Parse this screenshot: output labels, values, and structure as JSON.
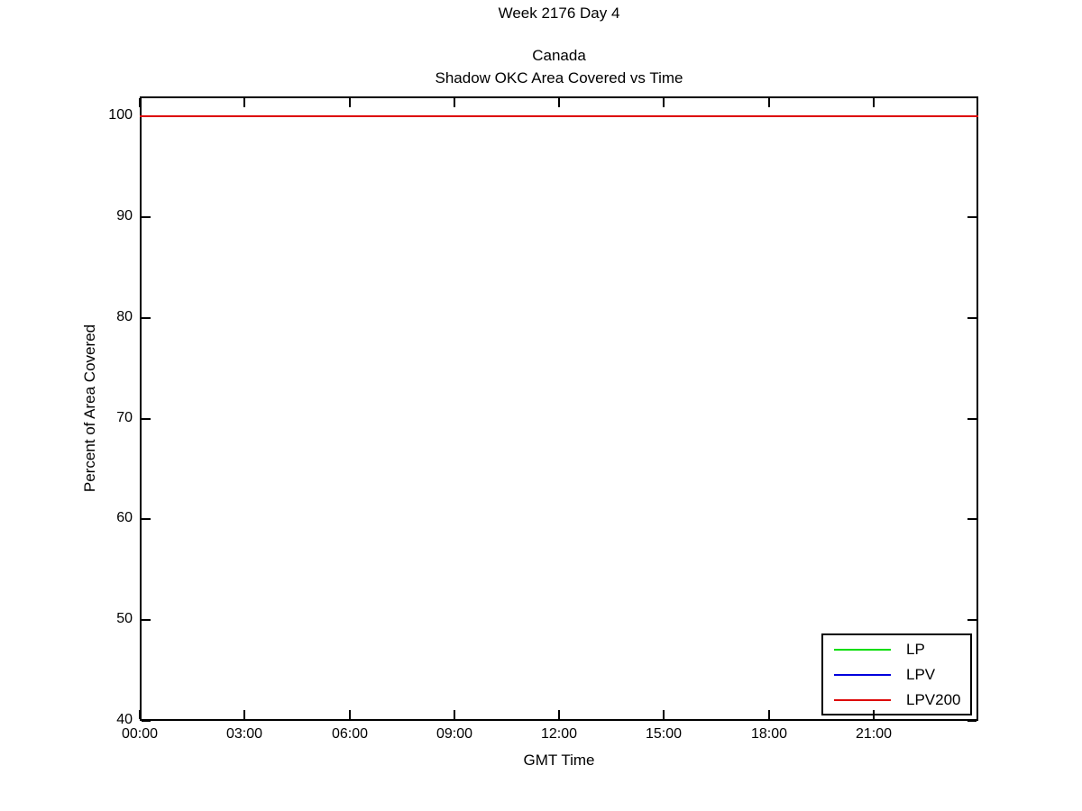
{
  "figure": {
    "suptitle": "Week 2176 Day 4",
    "title_line1": "Canada",
    "title_line2": "Shadow OKC Area Covered vs Time",
    "xlabel": "GMT Time",
    "ylabel": "Percent of Area Covered"
  },
  "chart_data": {
    "type": "line",
    "title": "Canada - Shadow OKC Area Covered vs Time",
    "suptitle": "Week 2176 Day 4",
    "xlabel": "GMT Time",
    "ylabel": "Percent of Area Covered",
    "x_tick_labels": [
      "00:00",
      "03:00",
      "06:00",
      "09:00",
      "12:00",
      "15:00",
      "18:00",
      "21:00"
    ],
    "x_tick_hours": [
      0,
      3,
      6,
      9,
      12,
      15,
      18,
      21
    ],
    "xlim_hours": [
      0,
      24
    ],
    "y_ticks": [
      40,
      50,
      60,
      70,
      80,
      90,
      100
    ],
    "ylim": [
      40,
      102
    ],
    "grid": false,
    "legend_position": "lower right",
    "axis_color": "#000000",
    "background_color": "#ffffff",
    "series": [
      {
        "name": "LP",
        "color": "#00dd00",
        "x_hours": [
          0,
          24
        ],
        "values": [
          100,
          100
        ]
      },
      {
        "name": "LPV",
        "color": "#0000dd",
        "x_hours": [
          0,
          24
        ],
        "values": [
          100,
          100
        ]
      },
      {
        "name": "LPV200",
        "color": "#dd0000",
        "x_hours": [
          0,
          24
        ],
        "values": [
          100,
          100
        ]
      }
    ]
  }
}
